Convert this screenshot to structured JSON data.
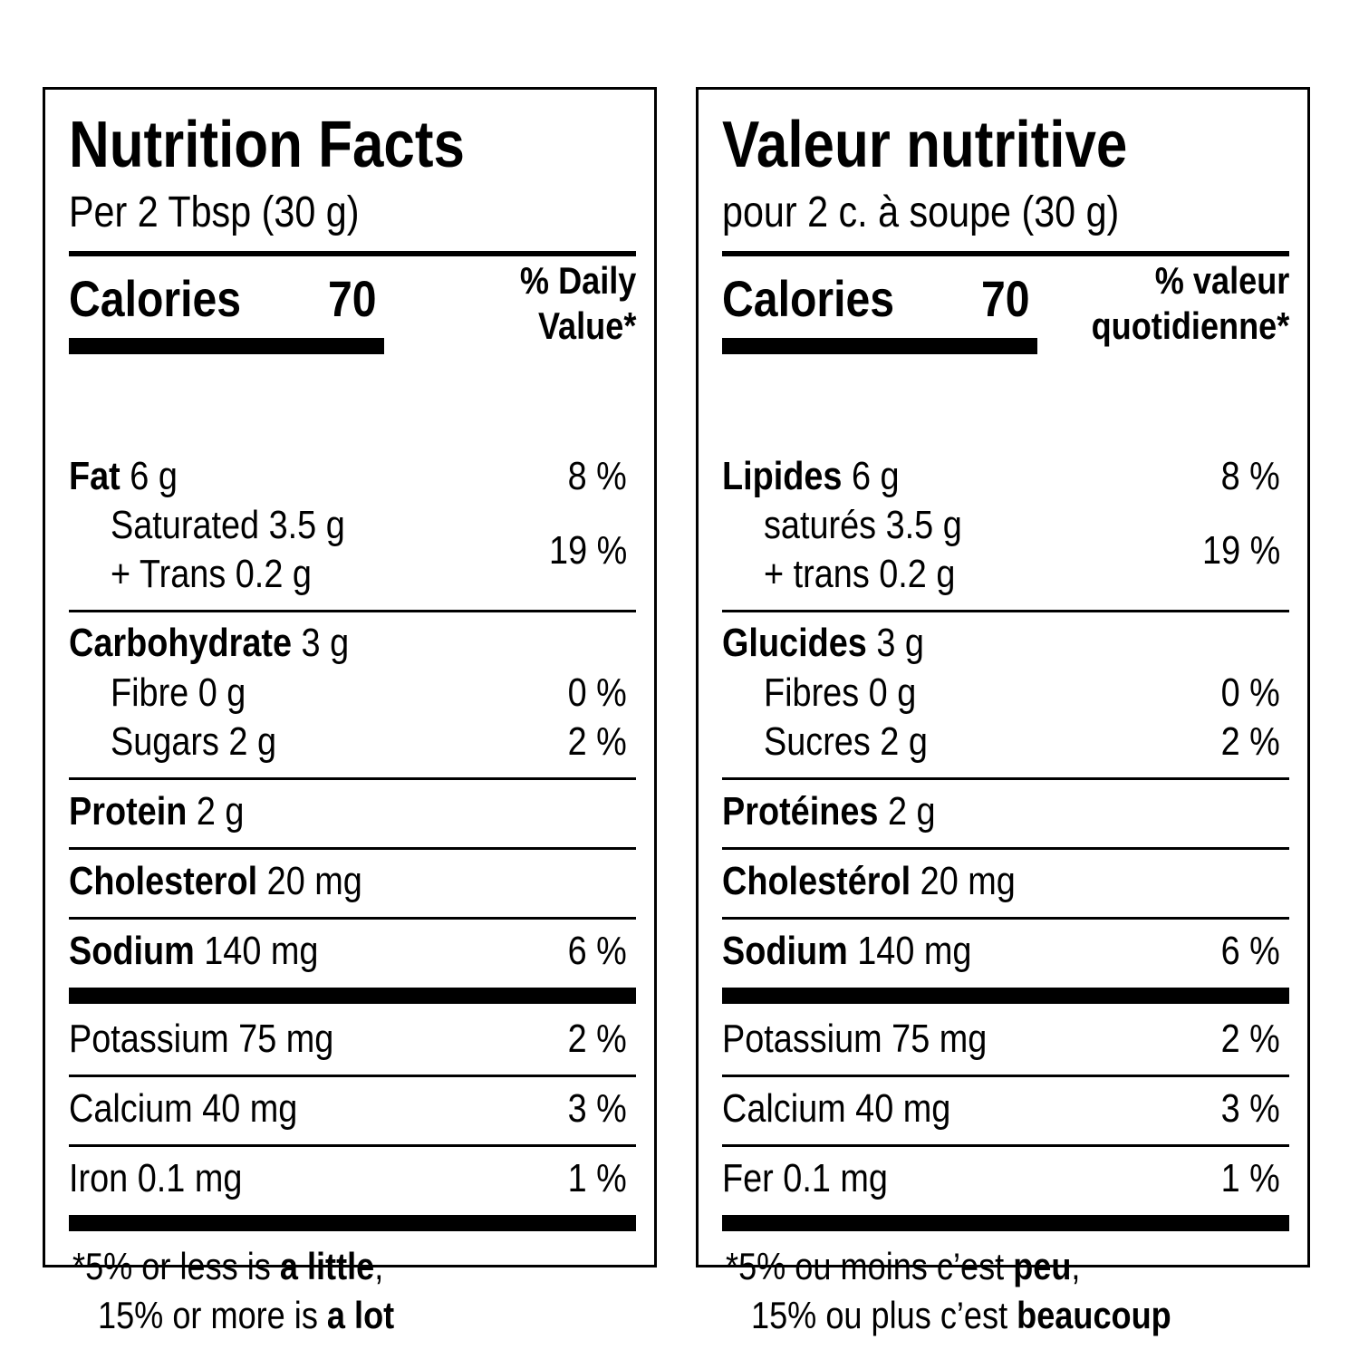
{
  "labels": [
    {
      "lang": "en",
      "title": "Nutrition Facts",
      "serving": "Per 2 Tbsp (30 g)",
      "calories_label": "Calories",
      "calories_value": "70",
      "dv_line1": "% Daily",
      "dv_line2": "Value",
      "asterisk": "*",
      "fat_label": "Fat",
      "fat_amount": "6 g",
      "fat_pct": "8 %",
      "saturated": "Saturated 3.5 g",
      "trans": "+ Trans 0.2 g",
      "sat_trans_pct": "19 %",
      "carb_label": "Carbohydrate",
      "carb_amount": "3 g",
      "fibre": "Fibre 0 g",
      "fibre_pct": "0 %",
      "sugars": "Sugars 2 g",
      "sugars_pct": "2 %",
      "protein_label": "Protein",
      "protein_amount": "2 g",
      "chol_label": "Cholesterol",
      "chol_amount": "20 mg",
      "sodium_label": "Sodium",
      "sodium_amount": "140 mg",
      "sodium_pct": "6 %",
      "potassium": "Potassium 75 mg",
      "potassium_pct": "2 %",
      "calcium": "Calcium 40 mg",
      "calcium_pct": "3 %",
      "iron": "Iron 0.1 mg",
      "iron_pct": "1 %",
      "foot_star": "*",
      "foot1_a": "5% or less is ",
      "foot1_b": "a little",
      "foot1_c": ",",
      "foot2_a": "15% or more is ",
      "foot2_b": "a lot"
    },
    {
      "lang": "fr",
      "title": "Valeur nutritive",
      "serving": "pour 2 c. à soupe (30 g)",
      "calories_label": "Calories",
      "calories_value": "70",
      "dv_line1": "% valeur",
      "dv_line2": "quotidienne",
      "asterisk": "*",
      "fat_label": "Lipides",
      "fat_amount": "6 g",
      "fat_pct": "8 %",
      "saturated": "saturés 3.5 g",
      "trans": "+ trans 0.2 g",
      "sat_trans_pct": "19 %",
      "carb_label": "Glucides",
      "carb_amount": "3 g",
      "fibre": "Fibres 0 g",
      "fibre_pct": "0 %",
      "sugars": "Sucres 2 g",
      "sugars_pct": "2 %",
      "protein_label": "Protéines",
      "protein_amount": "2 g",
      "chol_label": "Cholestérol",
      "chol_amount": "20 mg",
      "sodium_label": "Sodium",
      "sodium_amount": "140 mg",
      "sodium_pct": "6 %",
      "potassium": "Potassium 75 mg",
      "potassium_pct": "2 %",
      "calcium": "Calcium 40 mg",
      "calcium_pct": "3 %",
      "iron": "Fer 0.1 mg",
      "iron_pct": "1 %",
      "foot_star": "*",
      "foot1_a": "5% ou moins c’est ",
      "foot1_b": "peu",
      "foot1_c": ",",
      "foot2_a": "15% ou plus c’est ",
      "foot2_b": "beaucoup"
    }
  ]
}
